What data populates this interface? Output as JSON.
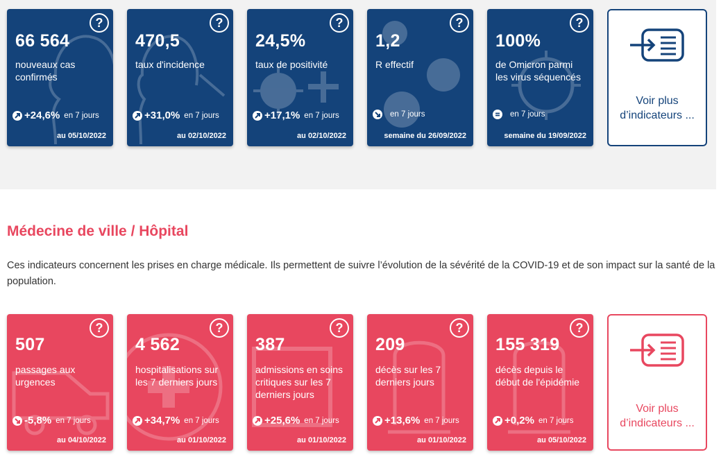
{
  "section1": {
    "cards": [
      {
        "value": "66 564",
        "label": "nouveaux cas confirmés",
        "trend": "+24,6%",
        "trend_dir": "up",
        "period": "en 7 jours",
        "date_prefix": "au",
        "date": "05/10/2022",
        "icon": "person-head-icon"
      },
      {
        "value": "470,5",
        "label": "taux d'incidence",
        "trend": "+31,0%",
        "trend_dir": "up",
        "period": "en 7 jours",
        "date_prefix": "au",
        "date": "02/10/2022",
        "icon": "nasal-swab-icon"
      },
      {
        "value": "24,5%",
        "label": "taux de positivité",
        "trend": "+17,1%",
        "trend_dir": "up",
        "period": "en 7 jours",
        "date_prefix": "au",
        "date": "02/10/2022",
        "icon": "virus-plus-icon"
      },
      {
        "value": "1,2",
        "label_sup": "R",
        "label": "effectif",
        "trend": "",
        "trend_dir": "down",
        "period": "en 7 jours",
        "date_prefix": "semaine du",
        "date": "26/09/2022",
        "icon": "viruses-icon"
      },
      {
        "value": "100%",
        "label": "de Omicron parmi les virus séquencés",
        "trend": "",
        "trend_dir": "equal",
        "period": "en 7 jours",
        "date_prefix": "semaine du",
        "date": "19/09/2022",
        "icon": "virus-variant-icon"
      }
    ],
    "more_label": "Voir plus d’indicateurs ..."
  },
  "section2": {
    "title": "Médecine de ville / Hôpital",
    "description": "Ces indicateurs concernent les prises en charge médicale. Ils permettent de suivre l’évolution de la sévérité de la COVID-19 et de son impact sur la santé de la population.",
    "cards": [
      {
        "value": "507",
        "label": "passages aux urgences",
        "trend": "-5,8%",
        "trend_dir": "down",
        "period": "en 7 jours",
        "date_prefix": "au",
        "date": "04/10/2022",
        "icon": "ambulance-icon"
      },
      {
        "value": "4 562",
        "label": "hospitalisations sur les 7 derniers jours",
        "trend": "+34,7%",
        "trend_dir": "up",
        "period": "en 7 jours",
        "date_prefix": "au",
        "date": "01/10/2022",
        "icon": "hospital-cross-icon"
      },
      {
        "value": "387",
        "label": "admissions en soins critiques sur les 7 derniers jours",
        "trend": "+25,6%",
        "trend_dir": "up",
        "period": "en 7 jours",
        "date_prefix": "au",
        "date": "01/10/2022",
        "icon": "monitor-icon"
      },
      {
        "value": "209",
        "label": "décès sur les 7 derniers jours",
        "trend": "+13,6%",
        "trend_dir": "up",
        "period": "en 7 jours",
        "date_prefix": "au",
        "date": "01/10/2022",
        "icon": "tombstone-icon"
      },
      {
        "value": "155 319",
        "label": "décès depuis le début de l'épidémie",
        "trend": "+0,2%",
        "trend_dir": "up",
        "period": "en 7 jours",
        "date_prefix": "au",
        "date": "05/10/2022",
        "icon": "tombstone-icon"
      }
    ],
    "more_label": "Voir plus d’indicateurs ..."
  },
  "help_symbol": "?",
  "colors": {
    "blue": "#14437a",
    "red": "#e8475f",
    "band": "#f2f2f2"
  }
}
